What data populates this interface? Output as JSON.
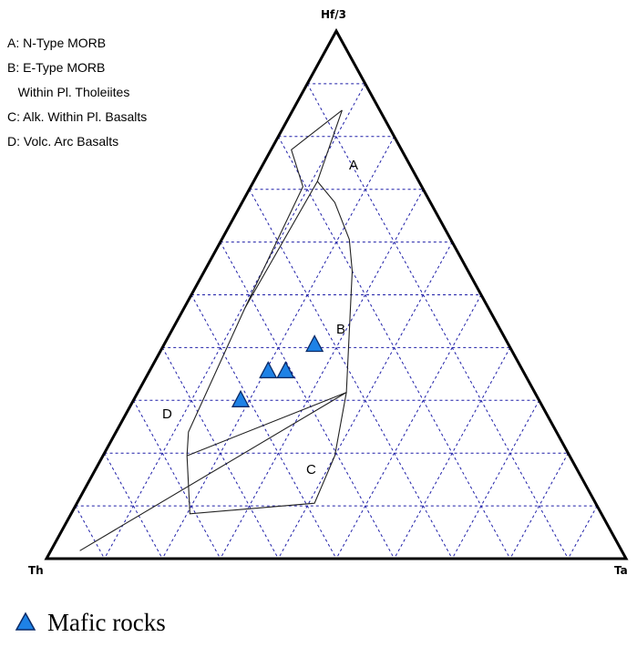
{
  "chart_data": {
    "type": "scatter",
    "subtype": "ternary",
    "title": "",
    "vertices": {
      "top": "Hf/3",
      "left": "Th",
      "right": "Ta"
    },
    "grid": true,
    "grid_step": 10,
    "field_legend": [
      "A: N-Type MORB",
      "B: E-Type MORB",
      "   Within Pl. Tholeiites",
      "C: Alk. Within Pl. Basalts",
      "D: Volc. Arc Basalts"
    ],
    "field_labels": [
      "A",
      "B",
      "C",
      "D"
    ],
    "series": [
      {
        "name": "Mafic rocks",
        "color": "#1e82e6",
        "marker": "triangle",
        "points": [
          {
            "hf3": 40.5,
            "th": 33.5,
            "ta": 26.0
          },
          {
            "hf3": 35.5,
            "th": 44.0,
            "ta": 20.5
          },
          {
            "hf3": 35.5,
            "th": 41.0,
            "ta": 23.5
          },
          {
            "hf3": 30.0,
            "th": 51.5,
            "ta": 18.5
          }
        ]
      }
    ],
    "boundaries": [
      [
        {
          "hf3": 85,
          "th": 6.5,
          "ta": 8.5
        },
        {
          "hf3": 77.5,
          "th": 19.0,
          "ta": 3.5
        },
        {
          "hf3": 70.5,
          "th": 20.5,
          "ta": 9.0
        },
        {
          "hf3": 47.5,
          "th": 42.0,
          "ta": 10.5
        },
        {
          "hf3": 24.0,
          "th": 63.5,
          "ta": 12.5
        },
        {
          "hf3": 19.5,
          "th": 66.0,
          "ta": 14.5
        }
      ],
      [
        {
          "hf3": 85,
          "th": 6.5,
          "ta": 8.5
        },
        {
          "hf3": 71.5,
          "th": 17.5,
          "ta": 11.0
        },
        {
          "hf3": 47.5,
          "th": 42.0,
          "ta": 10.5
        }
      ],
      [
        {
          "hf3": 71.5,
          "th": 17.5,
          "ta": 11.0
        },
        {
          "hf3": 67.5,
          "th": 16.5,
          "ta": 16.0
        },
        {
          "hf3": 60.5,
          "th": 17.5,
          "ta": 22.0
        },
        {
          "hf3": 54.5,
          "th": 20.0,
          "ta": 25.5
        },
        {
          "hf3": 31.5,
          "th": 32.5,
          "ta": 36.0
        },
        {
          "hf3": 19.5,
          "th": 66.0,
          "ta": 14.5
        }
      ],
      [
        {
          "hf3": 19.5,
          "th": 66.0,
          "ta": 14.5
        },
        {
          "hf3": 8.5,
          "th": 71.0,
          "ta": 20.5
        },
        {
          "hf3": 10.5,
          "th": 48.5,
          "ta": 41.0
        },
        {
          "hf3": 19.5,
          "th": 40.5,
          "ta": 40.0
        },
        {
          "hf3": 31.5,
          "th": 32.5,
          "ta": 36.0
        }
      ],
      [
        {
          "hf3": 31.5,
          "th": 32.5,
          "ta": 36.0
        },
        {
          "hf3": 1.5,
          "th": 93.5,
          "ta": 5.0
        }
      ]
    ]
  }
}
